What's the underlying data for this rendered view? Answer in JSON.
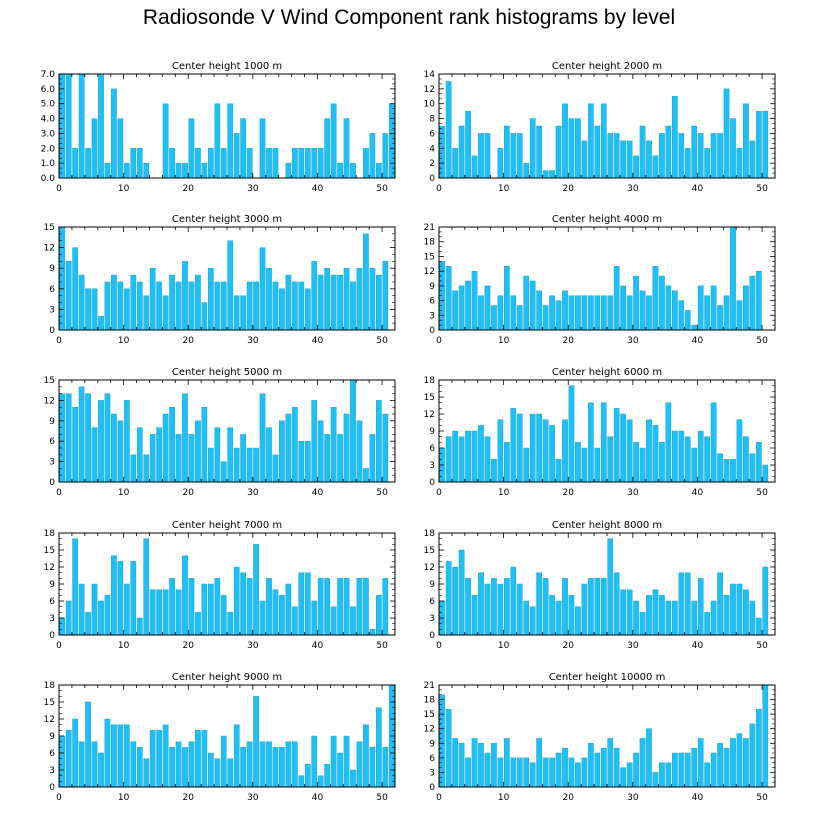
{
  "title": "Radiosonde V Wind Component rank histograms by level",
  "colors": {
    "bar": "#1ec0f6",
    "barStroke": "#1197c4",
    "axis": "#000000"
  },
  "chart_data": [
    {
      "type": "bar",
      "title": "Center height 1000 m",
      "xlim": [
        0,
        52
      ],
      "ylim": [
        0,
        7
      ],
      "yticks": [
        "0.0",
        "1.0",
        "2.0",
        "3.0",
        "4.0",
        "5.0",
        "6.0",
        "7.0"
      ],
      "xticks": [
        0,
        10,
        20,
        30,
        40,
        50
      ],
      "values": [
        7,
        7,
        2,
        7,
        2,
        4,
        7,
        1,
        6,
        4,
        1,
        2,
        2,
        1,
        0,
        0,
        5,
        2,
        1,
        1,
        4,
        2,
        1,
        2,
        5,
        2,
        5,
        3,
        4,
        2,
        0,
        4,
        2,
        2,
        0,
        1,
        2,
        2,
        2,
        2,
        2,
        4,
        5,
        1,
        4,
        1,
        0,
        2,
        3,
        1,
        3,
        5
      ]
    },
    {
      "type": "bar",
      "title": "Center height 2000 m",
      "xlim": [
        0,
        52
      ],
      "ylim": [
        0,
        14
      ],
      "yticks": [
        "0",
        "2",
        "4",
        "6",
        "8",
        "10",
        "12",
        "14"
      ],
      "xticks": [
        0,
        10,
        20,
        30,
        40,
        50
      ],
      "values": [
        7,
        13,
        4,
        7,
        9,
        3,
        6,
        6,
        0,
        4,
        7,
        6,
        6,
        2,
        8,
        7,
        1,
        1,
        7,
        10,
        8,
        8,
        5,
        10,
        7,
        10,
        6,
        6,
        5,
        5,
        3,
        7,
        5,
        3,
        6,
        7,
        11,
        6,
        4,
        7,
        6,
        4,
        6,
        6,
        12,
        8,
        4,
        10,
        5,
        9,
        9,
        0
      ]
    },
    {
      "type": "bar",
      "title": "Center height 3000 m",
      "xlim": [
        0,
        52
      ],
      "ylim": [
        0,
        15
      ],
      "yticks": [
        "0",
        "3",
        "6",
        "9",
        "12",
        "15"
      ],
      "xticks": [
        0,
        10,
        20,
        30,
        40,
        50
      ],
      "values": [
        15,
        10,
        12,
        8,
        6,
        6,
        2,
        7,
        8,
        7,
        6,
        8,
        7,
        5,
        9,
        7,
        5,
        8,
        7,
        10,
        7,
        8,
        4,
        9,
        7,
        7,
        13,
        5,
        5,
        7,
        7,
        12,
        9,
        7,
        6,
        8,
        7,
        7,
        6,
        10,
        8,
        9,
        8,
        8,
        9,
        7,
        9,
        14,
        9,
        8,
        10,
        0
      ]
    },
    {
      "type": "bar",
      "title": "Center height 4000 m",
      "xlim": [
        0,
        52
      ],
      "ylim": [
        0,
        21
      ],
      "yticks": [
        "0",
        "3",
        "6",
        "9",
        "12",
        "15",
        "18",
        "21"
      ],
      "xticks": [
        0,
        10,
        20,
        30,
        40,
        50
      ],
      "values": [
        14,
        13,
        8,
        9,
        10,
        12,
        7,
        9,
        5,
        7,
        13,
        7,
        5,
        11,
        10,
        8,
        5,
        7,
        6,
        8,
        7,
        7,
        7,
        7,
        7,
        7,
        7,
        13,
        9,
        7,
        11,
        8,
        7,
        13,
        11,
        9,
        8,
        6,
        4,
        1,
        9,
        7,
        9,
        5,
        7,
        21,
        6,
        9,
        11,
        12,
        0,
        0
      ]
    },
    {
      "type": "bar",
      "title": "Center height 5000 m",
      "xlim": [
        0,
        52
      ],
      "ylim": [
        0,
        15
      ],
      "yticks": [
        "0",
        "3",
        "6",
        "9",
        "12",
        "15"
      ],
      "xticks": [
        0,
        10,
        20,
        30,
        40,
        50
      ],
      "values": [
        13,
        13,
        11,
        14,
        13,
        8,
        12,
        13,
        10,
        9,
        12,
        4,
        8,
        4,
        7,
        8,
        10,
        11,
        7,
        13,
        7,
        9,
        11,
        5,
        8,
        3,
        8,
        5,
        7,
        5,
        5,
        13,
        8,
        4,
        9,
        10,
        11,
        6,
        6,
        12,
        9,
        7,
        11,
        7,
        10,
        15,
        9,
        2,
        7,
        12,
        10,
        0
      ]
    },
    {
      "type": "bar",
      "title": "Center height 6000 m",
      "xlim": [
        0,
        52
      ],
      "ylim": [
        0,
        18
      ],
      "yticks": [
        "0",
        "3",
        "6",
        "9",
        "12",
        "15",
        "18"
      ],
      "xticks": [
        0,
        10,
        20,
        30,
        40,
        50
      ],
      "values": [
        6,
        8,
        9,
        8,
        9,
        9,
        10,
        8,
        4,
        11,
        7,
        13,
        12,
        6,
        12,
        12,
        11,
        10,
        4,
        11,
        17,
        7,
        6,
        14,
        6,
        14,
        8,
        13,
        12,
        11,
        7,
        6,
        11,
        10,
        7,
        14,
        9,
        9,
        8,
        6,
        9,
        8,
        14,
        5,
        4,
        4,
        11,
        8,
        5,
        7,
        3,
        0
      ]
    },
    {
      "type": "bar",
      "title": "Center height 7000 m",
      "xlim": [
        0,
        52
      ],
      "ylim": [
        0,
        18
      ],
      "yticks": [
        "0",
        "3",
        "6",
        "9",
        "12",
        "15",
        "18"
      ],
      "xticks": [
        0,
        10,
        20,
        30,
        40,
        50
      ],
      "values": [
        3,
        6,
        17,
        9,
        4,
        9,
        6,
        7,
        14,
        13,
        9,
        13,
        3,
        17,
        8,
        8,
        8,
        10,
        8,
        14,
        10,
        4,
        9,
        9,
        10,
        7,
        4,
        12,
        11,
        10,
        16,
        6,
        10,
        8,
        7,
        9,
        5,
        11,
        11,
        6,
        10,
        10,
        5,
        10,
        10,
        5,
        10,
        10,
        1,
        7,
        10,
        0
      ]
    },
    {
      "type": "bar",
      "title": "Center height 8000 m",
      "xlim": [
        0,
        52
      ],
      "ylim": [
        0,
        18
      ],
      "yticks": [
        "0",
        "3",
        "6",
        "9",
        "12",
        "15",
        "18"
      ],
      "xticks": [
        0,
        10,
        20,
        30,
        40,
        50
      ],
      "values": [
        6,
        13,
        12,
        15,
        10,
        7,
        11,
        9,
        10,
        9,
        10,
        12,
        9,
        6,
        5,
        11,
        10,
        7,
        6,
        10,
        7,
        5,
        9,
        10,
        10,
        10,
        17,
        11,
        8,
        8,
        6,
        4,
        7,
        8,
        7,
        6,
        6,
        11,
        11,
        6,
        10,
        4,
        6,
        11,
        7,
        9,
        9,
        8,
        6,
        3,
        12,
        0
      ]
    },
    {
      "type": "bar",
      "title": "Center height 9000 m",
      "xlim": [
        0,
        52
      ],
      "ylim": [
        0,
        18
      ],
      "yticks": [
        "0",
        "3",
        "6",
        "9",
        "12",
        "15",
        "18"
      ],
      "xticks": [
        0,
        10,
        20,
        30,
        40,
        50
      ],
      "values": [
        9,
        10,
        12,
        8,
        15,
        8,
        6,
        12,
        11,
        11,
        11,
        8,
        7,
        5,
        10,
        10,
        11,
        7,
        8,
        7,
        8,
        10,
        10,
        6,
        5,
        9,
        5,
        11,
        7,
        8,
        16,
        8,
        8,
        7,
        7,
        8,
        8,
        2,
        4,
        9,
        2,
        4,
        9,
        6,
        9,
        3,
        8,
        11,
        7,
        14,
        7,
        18
      ]
    },
    {
      "type": "bar",
      "title": "Center height 10000 m",
      "xlim": [
        0,
        52
      ],
      "ylim": [
        0,
        21
      ],
      "yticks": [
        "0",
        "3",
        "6",
        "9",
        "12",
        "15",
        "18",
        "21"
      ],
      "xticks": [
        0,
        10,
        20,
        30,
        40,
        50
      ],
      "values": [
        19,
        16,
        10,
        9,
        6,
        10,
        9,
        7,
        9,
        6,
        10,
        6,
        6,
        6,
        5,
        10,
        6,
        6,
        7,
        8,
        6,
        5,
        6,
        9,
        7,
        8,
        10,
        8,
        4,
        5,
        7,
        10,
        12,
        3,
        5,
        5,
        7,
        7,
        7,
        8,
        10,
        5,
        7,
        9,
        8,
        10,
        11,
        10,
        13,
        16,
        21,
        0
      ]
    }
  ]
}
